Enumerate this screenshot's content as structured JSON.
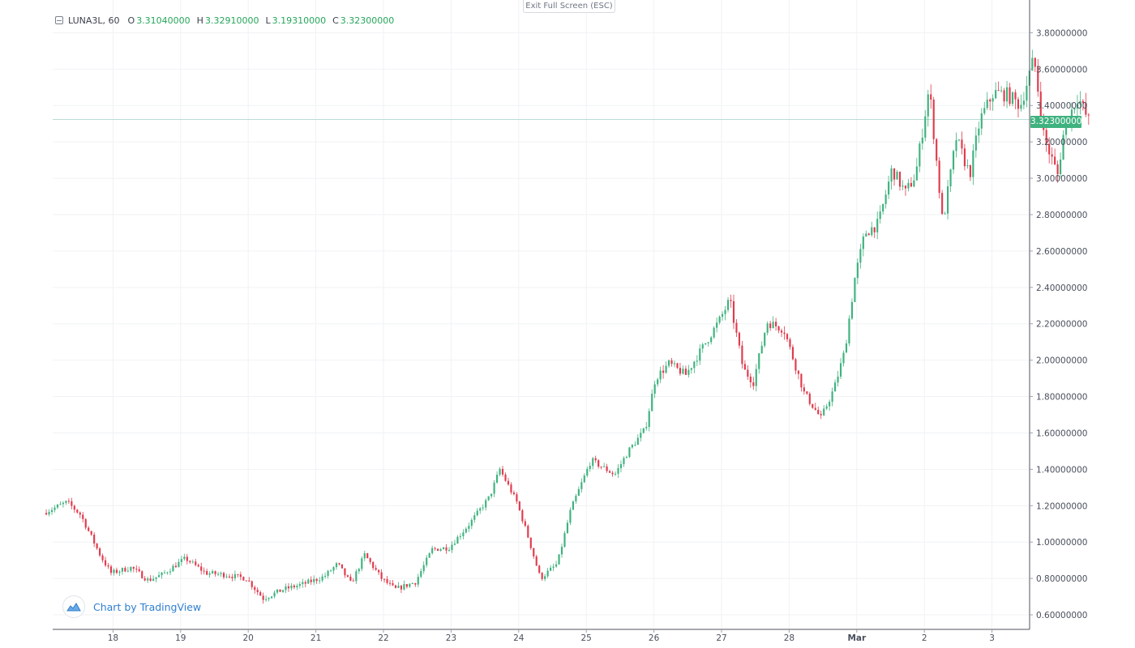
{
  "header": {
    "symbol": "LUNA3L, 60",
    "open_label": "O",
    "open": "3.31040000",
    "high_label": "H",
    "high": "3.32910000",
    "low_label": "L",
    "low": "3.19310000",
    "close_label": "C",
    "close": "3.32300000"
  },
  "exit_fullscreen_label": "Exit Full Screen (ESC)",
  "watermark_label": "Chart by TradingView",
  "last_price_label": "3.32300000",
  "colors": {
    "up": "#3fb27f",
    "down": "#e03b4d",
    "price_line": "#bcdcd5",
    "grid": "#f0f2f5",
    "axis_text": "#4a4f5c"
  },
  "chart_data": {
    "type": "candlestick",
    "timeframe": "60",
    "x_ticks": [
      "18",
      "19",
      "20",
      "21",
      "22",
      "23",
      "24",
      "25",
      "26",
      "27",
      "28",
      "Mar",
      "2",
      "3"
    ],
    "y_ticks": [
      "0.60000000",
      "0.80000000",
      "1.00000000",
      "1.20000000",
      "1.40000000",
      "1.60000000",
      "1.80000000",
      "2.00000000",
      "2.20000000",
      "2.40000000",
      "2.60000000",
      "2.80000000",
      "3.00000000",
      "3.20000000",
      "3.40000000",
      "3.60000000",
      "3.80000000"
    ],
    "ylim": [
      0.52,
      3.98
    ],
    "last_price": 3.323,
    "grid": true,
    "daily_path": [
      [
        0.0,
        1.16
      ],
      [
        0.35,
        1.22
      ],
      [
        0.55,
        1.15
      ],
      [
        0.85,
        0.92
      ],
      [
        1.0,
        0.83
      ],
      [
        1.3,
        0.86
      ],
      [
        1.55,
        0.79
      ],
      [
        1.75,
        0.82
      ],
      [
        2.1,
        0.91
      ],
      [
        2.4,
        0.83
      ],
      [
        2.7,
        0.82
      ],
      [
        3.0,
        0.8
      ],
      [
        3.25,
        0.69
      ],
      [
        3.55,
        0.74
      ],
      [
        3.85,
        0.77
      ],
      [
        4.15,
        0.81
      ],
      [
        4.35,
        0.88
      ],
      [
        4.55,
        0.77
      ],
      [
        4.75,
        0.93
      ],
      [
        5.0,
        0.8
      ],
      [
        5.2,
        0.74
      ],
      [
        5.5,
        0.78
      ],
      [
        5.75,
        0.96
      ],
      [
        6.0,
        0.97
      ],
      [
        6.3,
        1.1
      ],
      [
        6.6,
        1.25
      ],
      [
        6.75,
        1.4
      ],
      [
        7.0,
        1.22
      ],
      [
        7.15,
        1.05
      ],
      [
        7.35,
        0.8
      ],
      [
        7.6,
        0.88
      ],
      [
        7.8,
        1.18
      ],
      [
        8.1,
        1.45
      ],
      [
        8.45,
        1.37
      ],
      [
        8.65,
        1.5
      ],
      [
        8.9,
        1.62
      ],
      [
        9.05,
        1.9
      ],
      [
        9.25,
        1.98
      ],
      [
        9.5,
        1.92
      ],
      [
        9.8,
        2.1
      ],
      [
        10.0,
        2.22
      ],
      [
        10.15,
        2.33
      ],
      [
        10.35,
        1.95
      ],
      [
        10.5,
        1.88
      ],
      [
        10.7,
        2.21
      ],
      [
        10.95,
        2.17
      ],
      [
        11.25,
        1.82
      ],
      [
        11.5,
        1.68
      ],
      [
        11.7,
        1.85
      ],
      [
        11.85,
        2.05
      ],
      [
        12.0,
        2.45
      ],
      [
        12.15,
        2.7
      ],
      [
        12.35,
        2.75
      ],
      [
        12.55,
        3.05
      ],
      [
        12.75,
        2.92
      ],
      [
        12.9,
        3.02
      ],
      [
        13.1,
        3.5
      ],
      [
        13.3,
        2.75
      ],
      [
        13.5,
        3.22
      ],
      [
        13.7,
        3.02
      ],
      [
        13.85,
        3.32
      ],
      [
        14.05,
        3.47
      ],
      [
        14.25,
        3.46
      ],
      [
        14.45,
        3.4
      ],
      [
        14.65,
        3.66
      ],
      [
        14.8,
        3.22
      ],
      [
        15.0,
        3.02
      ],
      [
        15.1,
        3.28
      ],
      [
        15.3,
        3.45
      ],
      [
        15.45,
        3.32
      ]
    ]
  }
}
